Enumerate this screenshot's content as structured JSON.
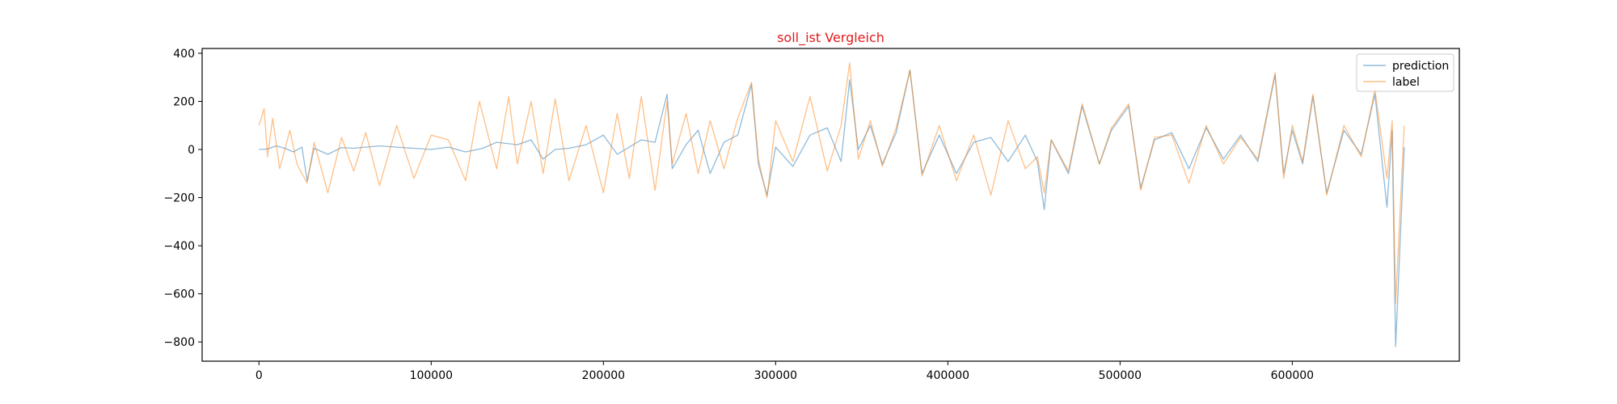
{
  "chart_data": {
    "type": "line",
    "title": "soll_ist Vergleich",
    "title_color": "#e41a1c",
    "xlabel": "",
    "ylabel": "",
    "xlim": [
      -33000,
      697000
    ],
    "ylim": [
      -880,
      420
    ],
    "x_ticks": [
      0,
      100000,
      200000,
      300000,
      400000,
      500000,
      600000
    ],
    "x_tick_labels": [
      "0",
      "100000",
      "200000",
      "300000",
      "400000",
      "500000",
      "600000"
    ],
    "y_ticks": [
      400,
      200,
      0,
      -200,
      -400,
      -600,
      -800
    ],
    "y_tick_labels": [
      "400",
      "200",
      "0",
      "−200",
      "−400",
      "−600",
      "−800"
    ],
    "grid": false,
    "legend_position": "upper right",
    "series": [
      {
        "name": "prediction",
        "color": "#1f77b4",
        "opacity": 0.5,
        "x": [
          0,
          5000,
          10000,
          15000,
          20000,
          25000,
          28000,
          32000,
          40000,
          48000,
          55000,
          62000,
          70000,
          80000,
          90000,
          100000,
          110000,
          120000,
          130000,
          138000,
          150000,
          158000,
          165000,
          172000,
          180000,
          190000,
          200000,
          208000,
          215000,
          222000,
          230000,
          237000,
          240000,
          248000,
          255000,
          262000,
          270000,
          278000,
          286000,
          290000,
          295000,
          300000,
          310000,
          320000,
          330000,
          338000,
          343000,
          348000,
          355000,
          362000,
          370000,
          378000,
          385000,
          395000,
          405000,
          415000,
          425000,
          435000,
          445000,
          452000,
          456000,
          460000,
          470000,
          478000,
          488000,
          495000,
          505000,
          512000,
          520000,
          530000,
          540000,
          550000,
          560000,
          570000,
          580000,
          590000,
          595000,
          600000,
          606000,
          612000,
          620000,
          630000,
          640000,
          648000,
          655000,
          658000,
          660000,
          665000
        ],
        "y": [
          0,
          2,
          15,
          5,
          -10,
          10,
          -130,
          5,
          -20,
          8,
          5,
          10,
          15,
          10,
          5,
          0,
          10,
          -10,
          5,
          30,
          20,
          40,
          -40,
          0,
          5,
          20,
          60,
          -20,
          10,
          40,
          30,
          230,
          -80,
          20,
          80,
          -100,
          30,
          60,
          270,
          -60,
          -190,
          10,
          -70,
          60,
          90,
          -50,
          290,
          0,
          100,
          -60,
          70,
          330,
          -100,
          60,
          -100,
          30,
          50,
          -50,
          60,
          -50,
          -250,
          40,
          -100,
          180,
          -60,
          80,
          180,
          -160,
          40,
          70,
          -80,
          90,
          -40,
          60,
          -50,
          310,
          -100,
          80,
          -60,
          220,
          -180,
          80,
          -20,
          230,
          -240,
          80,
          -820,
          10
        ],
        "style": "solid"
      },
      {
        "name": "label",
        "color": "#ff7f0e",
        "opacity": 0.5,
        "x": [
          0,
          3000,
          5000,
          8000,
          12000,
          18000,
          22000,
          28000,
          32000,
          40000,
          48000,
          55000,
          62000,
          70000,
          80000,
          90000,
          100000,
          110000,
          120000,
          128000,
          138000,
          145000,
          150000,
          158000,
          165000,
          172000,
          180000,
          190000,
          200000,
          208000,
          215000,
          222000,
          230000,
          237000,
          240000,
          248000,
          255000,
          262000,
          270000,
          278000,
          286000,
          290000,
          295000,
          300000,
          310000,
          320000,
          330000,
          338000,
          343000,
          348000,
          355000,
          362000,
          370000,
          378000,
          385000,
          395000,
          405000,
          415000,
          425000,
          435000,
          445000,
          452000,
          456000,
          460000,
          470000,
          478000,
          488000,
          495000,
          505000,
          512000,
          520000,
          530000,
          540000,
          550000,
          560000,
          570000,
          580000,
          590000,
          595000,
          600000,
          606000,
          612000,
          620000,
          630000,
          640000,
          648000,
          655000,
          658000,
          660000,
          665000
        ],
        "y": [
          100,
          170,
          -30,
          130,
          -80,
          80,
          -60,
          -140,
          30,
          -180,
          50,
          -90,
          70,
          -150,
          100,
          -120,
          60,
          40,
          -130,
          200,
          -80,
          220,
          -60,
          200,
          -100,
          210,
          -130,
          100,
          -180,
          150,
          -120,
          220,
          -170,
          200,
          -60,
          150,
          -100,
          120,
          -80,
          130,
          280,
          -40,
          -200,
          120,
          -50,
          220,
          -90,
          100,
          360,
          -40,
          120,
          -70,
          90,
          330,
          -110,
          100,
          -130,
          60,
          -190,
          120,
          -80,
          -30,
          -180,
          40,
          -90,
          190,
          -60,
          90,
          190,
          -170,
          50,
          60,
          -140,
          100,
          -60,
          50,
          -40,
          320,
          -120,
          100,
          -50,
          230,
          -190,
          100,
          -30,
          250,
          -120,
          120,
          -640,
          100
        ],
        "style": "solid"
      }
    ]
  }
}
